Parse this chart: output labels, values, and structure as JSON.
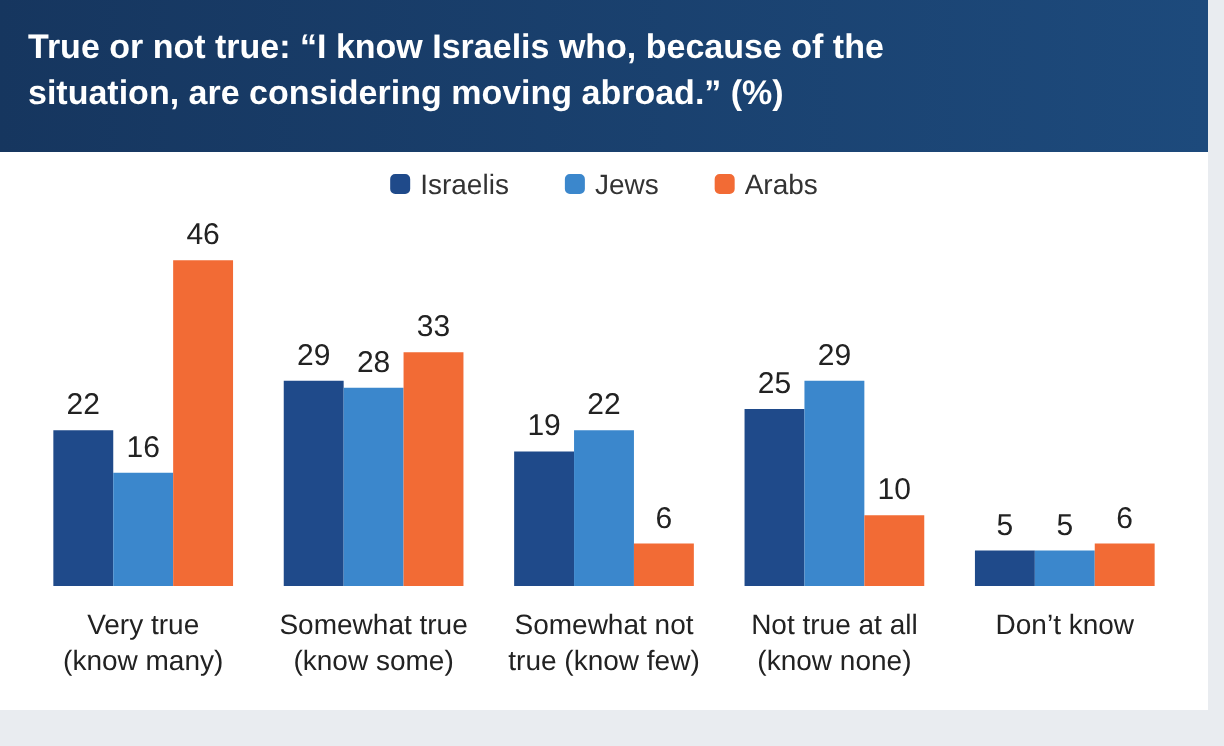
{
  "chart_data": {
    "type": "bar",
    "title": "True or not true: “I know Israelis who, because of the situation, are considering moving abroad.” (%)",
    "categories": [
      "Very true\n(know many)",
      "Somewhat true\n(know some)",
      "Somewhat not\ntrue (know few)",
      "Not true at all\n(know none)",
      "Don’t know"
    ],
    "series": [
      {
        "name": "Israelis",
        "color": "#1f4a8a",
        "values": [
          22,
          29,
          19,
          25,
          5
        ]
      },
      {
        "name": "Jews",
        "color": "#3b87cc",
        "values": [
          16,
          28,
          22,
          29,
          5
        ]
      },
      {
        "name": "Arabs",
        "color": "#f26b35",
        "values": [
          46,
          33,
          6,
          10,
          6
        ]
      }
    ],
    "data_labels": true,
    "legend": "top",
    "grid": false
  }
}
